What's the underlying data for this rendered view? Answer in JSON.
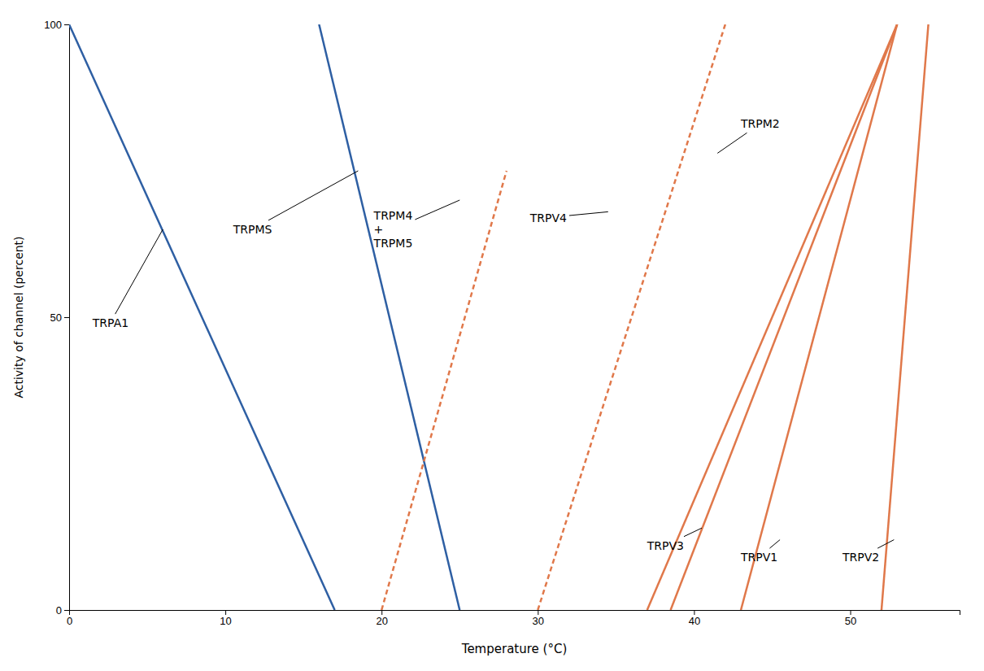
{
  "chart_data": {
    "type": "line",
    "xlabel": "Temperature (°C)",
    "ylabel": "Activity of channel (percent)",
    "xlim": [
      0,
      57
    ],
    "ylim": [
      0,
      100
    ],
    "xticks": [
      0,
      10,
      20,
      30,
      40,
      50
    ],
    "yticks": [
      0,
      50,
      100
    ],
    "grid": false,
    "series": [
      {
        "color": "#2E5FA3",
        "line_style": "solid",
        "x": [
          0,
          17
        ],
        "values": [
          100,
          0
        ]
      },
      {
        "color": "#2E5FA3",
        "line_style": "solid",
        "x": [
          16,
          25
        ],
        "values": [
          100,
          0
        ]
      },
      {
        "color": "#E0784A",
        "line_style": "dashed",
        "x": [
          20,
          28
        ],
        "values": [
          0,
          75
        ]
      },
      {
        "color": "#E0784A",
        "line_style": "dashed",
        "x": [
          30,
          42
        ],
        "values": [
          0,
          100
        ]
      },
      {
        "color": "#E0784A",
        "line_style": "solid",
        "x": [
          37,
          53
        ],
        "values": [
          0,
          100
        ]
      },
      {
        "color": "#E0784A",
        "line_style": "solid",
        "x": [
          38.5,
          53
        ],
        "values": [
          0,
          100
        ]
      },
      {
        "color": "#E0784A",
        "line_style": "solid",
        "x": [
          43,
          53
        ],
        "values": [
          0,
          100
        ]
      },
      {
        "color": "#E0784A",
        "line_style": "solid",
        "x": [
          52,
          55
        ],
        "values": [
          0,
          100
        ]
      }
    ],
    "annotations": [
      {
        "text": "TRPA1",
        "xy": [
          6.0,
          65
        ],
        "xytext": [
          1.5,
          49
        ]
      },
      {
        "text": "TRPMS",
        "xy": [
          18.5,
          75
        ],
        "xytext": [
          10.5,
          65
        ]
      },
      {
        "text": "TRPM4\n+\nTRPM5",
        "xy": [
          25.0,
          70
        ],
        "xytext": [
          19.5,
          65
        ]
      },
      {
        "text": "TRPV4",
        "xy": [
          34.5,
          68
        ],
        "xytext": [
          29.5,
          67
        ]
      },
      {
        "text": "TRPM2",
        "xy": [
          41.5,
          78
        ],
        "xytext": [
          43.0,
          83
        ]
      },
      {
        "text": "TRPV3",
        "xy": [
          40.5,
          14
        ],
        "xytext": [
          37.0,
          11
        ]
      },
      {
        "text": "TRPV1",
        "xy": [
          45.5,
          12
        ],
        "xytext": [
          43.0,
          9
        ]
      },
      {
        "text": "TRPV2",
        "xy": [
          52.8,
          12
        ],
        "xytext": [
          49.5,
          9
        ]
      }
    ]
  }
}
